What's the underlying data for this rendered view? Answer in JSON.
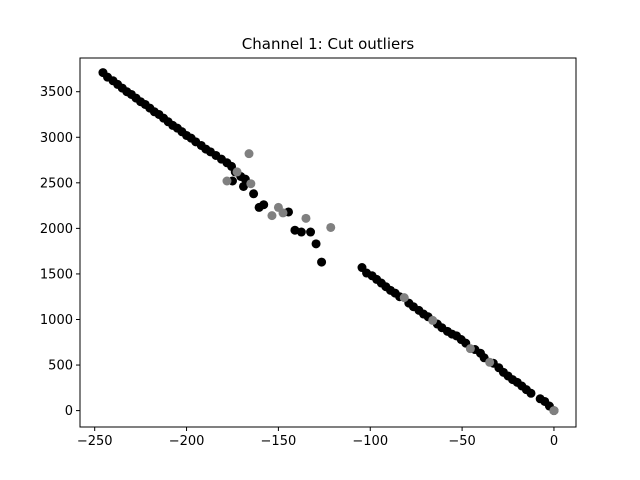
{
  "chart_data": {
    "type": "scatter",
    "title": "Channel 1: Cut outliers",
    "xlabel": "",
    "ylabel": "",
    "xlim": [
      -258,
      12
    ],
    "ylim": [
      -180,
      3870
    ],
    "xticks": [
      -250,
      -200,
      -150,
      -100,
      -50,
      0
    ],
    "yticks": [
      0,
      500,
      1000,
      1500,
      2000,
      2500,
      3000,
      3500
    ],
    "xtick_labels": [
      "−250",
      "−200",
      "−150",
      "−100",
      "−50",
      "0"
    ],
    "ytick_labels": [
      "0",
      "500",
      "1000",
      "1500",
      "2000",
      "2500",
      "3000",
      "3500"
    ],
    "grid": false,
    "series": [
      {
        "color": "#000000",
        "points": [
          [
            -245.5,
            3710
          ],
          [
            -243,
            3660
          ],
          [
            -240,
            3620
          ],
          [
            -237.5,
            3580
          ],
          [
            -235,
            3540
          ],
          [
            -232.5,
            3500
          ],
          [
            -230,
            3470
          ],
          [
            -227.5,
            3430
          ],
          [
            -225,
            3390
          ],
          [
            -222.5,
            3360
          ],
          [
            -220,
            3320
          ],
          [
            -217.5,
            3280
          ],
          [
            -215,
            3250
          ],
          [
            -212.5,
            3210
          ],
          [
            -210,
            3170
          ],
          [
            -207.5,
            3130
          ],
          [
            -205,
            3100
          ],
          [
            -202.5,
            3060
          ],
          [
            -200,
            3020
          ],
          [
            -197.5,
            2990
          ],
          [
            -195,
            2950
          ],
          [
            -192,
            2910
          ],
          [
            -189.5,
            2870
          ],
          [
            -187,
            2840
          ],
          [
            -184,
            2800
          ],
          [
            -181,
            2760
          ],
          [
            -178,
            2720
          ],
          [
            -175.5,
            2680
          ],
          [
            -173.5,
            2620
          ],
          [
            -170.5,
            2570
          ],
          [
            -168,
            2540
          ],
          [
            -175,
            2520
          ],
          [
            -169,
            2460
          ],
          [
            -163.5,
            2380
          ],
          [
            -160.5,
            2230
          ],
          [
            -158,
            2260
          ],
          [
            -144.5,
            2180
          ],
          [
            -141,
            1980
          ],
          [
            -137.5,
            1960
          ],
          [
            -132.5,
            1960
          ],
          [
            -129.5,
            1830
          ],
          [
            -126.5,
            1630
          ],
          [
            -104.5,
            1570
          ],
          [
            -102,
            1510
          ],
          [
            -99,
            1480
          ],
          [
            -96.5,
            1440
          ],
          [
            -94,
            1400
          ],
          [
            -91.5,
            1360
          ],
          [
            -89,
            1320
          ],
          [
            -86.5,
            1290
          ],
          [
            -84,
            1250
          ],
          [
            -79,
            1180
          ],
          [
            -76.5,
            1140
          ],
          [
            -73.5,
            1100
          ],
          [
            -71,
            1060
          ],
          [
            -68.5,
            1030
          ],
          [
            -63.5,
            950
          ],
          [
            -61,
            910
          ],
          [
            -58,
            870
          ],
          [
            -55.5,
            840
          ],
          [
            -53,
            820
          ],
          [
            -50.5,
            780
          ],
          [
            -48,
            740
          ],
          [
            -43,
            670
          ],
          [
            -40,
            630
          ],
          [
            -38,
            580
          ],
          [
            -33,
            520
          ],
          [
            -30,
            470
          ],
          [
            -27.5,
            420
          ],
          [
            -25,
            380
          ],
          [
            -22.5,
            340
          ],
          [
            -20,
            310
          ],
          [
            -17.5,
            270
          ],
          [
            -15,
            230
          ],
          [
            -12.5,
            190
          ],
          [
            -7.5,
            130
          ],
          [
            -5,
            100
          ],
          [
            -2.5,
            50
          ],
          [
            0,
            0
          ]
        ]
      },
      {
        "color": "#808080",
        "points": [
          [
            -178,
            2520
          ],
          [
            -172.5,
            2620
          ],
          [
            -166,
            2820
          ],
          [
            -165,
            2490
          ],
          [
            -153.5,
            2140
          ],
          [
            -150,
            2230
          ],
          [
            -147.5,
            2170
          ],
          [
            -135,
            2110
          ],
          [
            -121.5,
            2010
          ],
          [
            -81.5,
            1240
          ],
          [
            -66,
            990
          ],
          [
            -45.5,
            680
          ],
          [
            -35,
            530
          ],
          [
            0,
            0
          ]
        ]
      }
    ]
  }
}
